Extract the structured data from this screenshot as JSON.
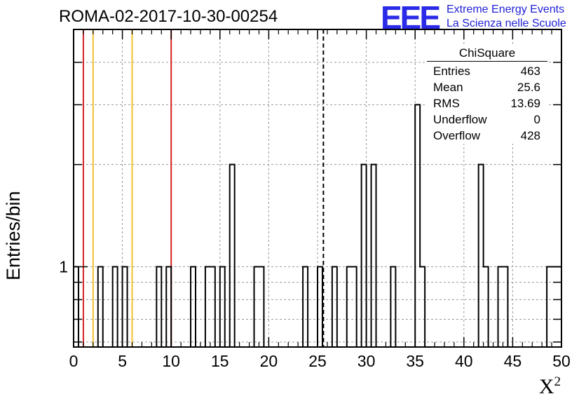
{
  "title": "ROMA-02-2017-10-30-00254",
  "logo": {
    "mark": "EEE",
    "line1": "Extreme Energy Events",
    "line2": "La Scienza nelle Scuole",
    "color": "#2a2ae8"
  },
  "stats_box": {
    "title": "ChiSquare",
    "rows": [
      {
        "label": "Entries",
        "value": "463"
      },
      {
        "label": "Mean",
        "value": "25.6"
      },
      {
        "label": "RMS",
        "value": "13.69"
      },
      {
        "label": "Underflow",
        "value": "0"
      },
      {
        "label": "Overflow",
        "value": "428"
      }
    ]
  },
  "chart_data": {
    "type": "bar",
    "style": "step-histogram",
    "title": "ROMA-02-2017-10-30-00254",
    "xlabel": "X²",
    "ylabel": "Entries/bin",
    "xlim": [
      0,
      50
    ],
    "ylim_log": [
      0.58,
      5
    ],
    "y_scale": "log",
    "grid": true,
    "bin_width": 0.5,
    "x_ticks": [
      0,
      5,
      10,
      15,
      20,
      25,
      30,
      35,
      40,
      45,
      50
    ],
    "y_tick_labels": [
      {
        "value": 1,
        "label": "1"
      }
    ],
    "bins": [
      {
        "x": 0.25,
        "y": 1
      },
      {
        "x": 2.75,
        "y": 1
      },
      {
        "x": 4.25,
        "y": 1
      },
      {
        "x": 5.25,
        "y": 1
      },
      {
        "x": 8.75,
        "y": 1
      },
      {
        "x": 9.75,
        "y": 1
      },
      {
        "x": 12.25,
        "y": 1
      },
      {
        "x": 13.75,
        "y": 1
      },
      {
        "x": 14.25,
        "y": 1
      },
      {
        "x": 15.25,
        "y": 1
      },
      {
        "x": 16.25,
        "y": 2
      },
      {
        "x": 18.75,
        "y": 1
      },
      {
        "x": 19.25,
        "y": 1
      },
      {
        "x": 23.75,
        "y": 1
      },
      {
        "x": 25.25,
        "y": 1
      },
      {
        "x": 26.75,
        "y": 1
      },
      {
        "x": 28.25,
        "y": 1
      },
      {
        "x": 28.75,
        "y": 1
      },
      {
        "x": 29.75,
        "y": 2
      },
      {
        "x": 30.75,
        "y": 2
      },
      {
        "x": 32.75,
        "y": 1
      },
      {
        "x": 35.25,
        "y": 3
      },
      {
        "x": 35.75,
        "y": 1
      },
      {
        "x": 41.75,
        "y": 2
      },
      {
        "x": 42.25,
        "y": 1
      },
      {
        "x": 43.75,
        "y": 1
      },
      {
        "x": 44.25,
        "y": 1
      },
      {
        "x": 48.75,
        "y": 1
      },
      {
        "x": 49.25,
        "y": 1
      },
      {
        "x": 49.75,
        "y": 1
      }
    ],
    "vertical_lines": [
      {
        "x": 1,
        "color": "#d42020",
        "style": "solid"
      },
      {
        "x": 2,
        "color": "#f2c12e",
        "style": "solid"
      },
      {
        "x": 6,
        "color": "#f2c12e",
        "style": "solid"
      },
      {
        "x": 10,
        "color": "#d42020",
        "style": "solid"
      },
      {
        "x": 25.6,
        "color": "#000000",
        "style": "dashed"
      }
    ]
  }
}
